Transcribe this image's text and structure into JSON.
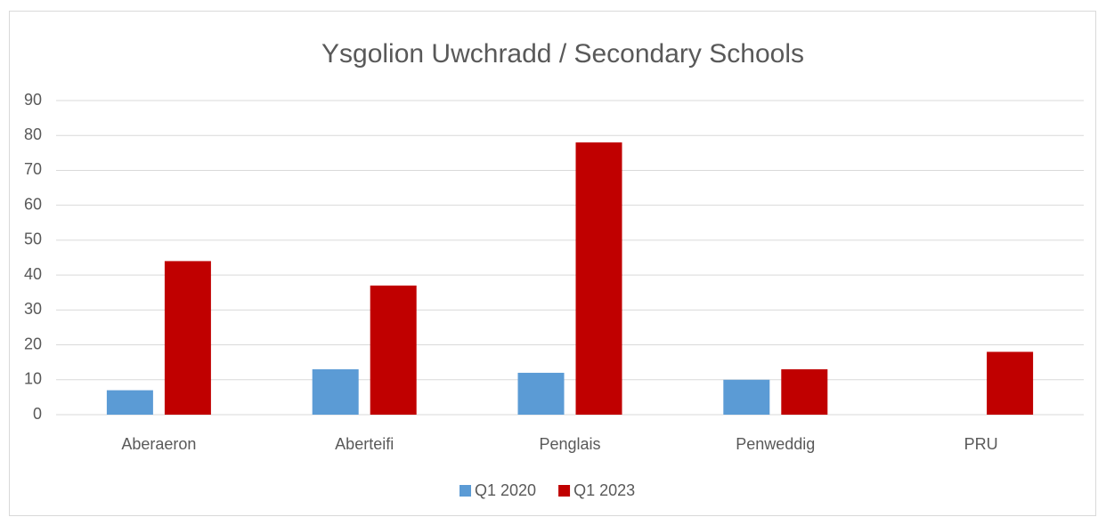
{
  "chart_data": {
    "type": "bar",
    "title": "Ysgolion Uwchradd / Secondary Schools",
    "categories": [
      "Aberaeron",
      "Aberteifi",
      "Penglais",
      "Penweddig",
      "PRU"
    ],
    "series": [
      {
        "name": "Q1 2020",
        "color": "#5b9bd5",
        "values": [
          7,
          13,
          12,
          10,
          0
        ]
      },
      {
        "name": "Q1 2023",
        "color": "#c00000",
        "values": [
          44,
          37,
          78,
          13,
          18
        ]
      }
    ],
    "ylim": [
      0,
      90
    ],
    "yticks": [
      0,
      10,
      20,
      30,
      40,
      50,
      60,
      70,
      80,
      90
    ],
    "grid": true,
    "legend": "bottom"
  }
}
